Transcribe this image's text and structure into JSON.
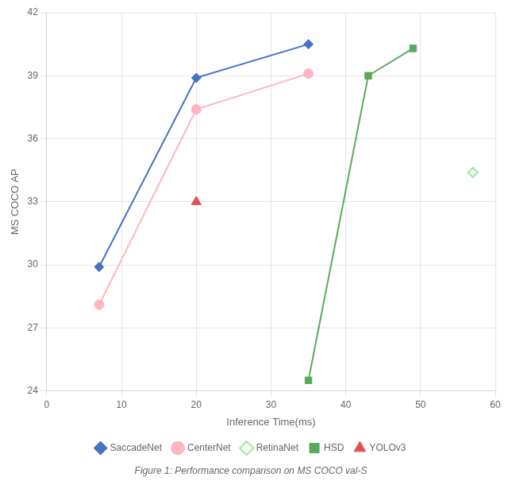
{
  "chart_data": {
    "type": "line",
    "xlabel": "Inference Time(ms)",
    "ylabel": "MS COCO AP",
    "caption": "Figure 1: Performance comparison on MS COCO val-S",
    "series": [
      {
        "name": "SaccadeNet",
        "color": "#4472C4",
        "marker": "diamond",
        "line_style": "solid",
        "x": [
          7,
          20,
          35
        ],
        "values": [
          29.9,
          38.9,
          40.5
        ]
      },
      {
        "name": "CenterNet",
        "color": "#FFB6C1",
        "marker": "circle",
        "line_style": "solid",
        "x": [
          7,
          20,
          35
        ],
        "values": [
          28.1,
          37.4,
          39.1
        ]
      },
      {
        "name": "RetinaNet",
        "color": "#90EE90",
        "marker": "diamond-open",
        "line_style": "none",
        "x": [
          57
        ],
        "values": [
          34.4
        ]
      },
      {
        "name": "HSD",
        "color": "#5BA85B",
        "marker": "square",
        "line_style": "solid",
        "x": [
          35,
          43,
          49
        ],
        "values": [
          24.5,
          39.0,
          40.3
        ]
      },
      {
        "name": "YOLOv3",
        "color": "#E05050",
        "marker": "triangle",
        "line_style": "none",
        "x": [
          20
        ],
        "values": [
          33.0
        ]
      }
    ],
    "xlim": [
      0,
      60
    ],
    "ylim": [
      24,
      42
    ],
    "xticks": [
      0,
      10,
      20,
      30,
      40,
      50,
      60
    ],
    "yticks": [
      24,
      27,
      30,
      33,
      36,
      39,
      42
    ],
    "grid": true,
    "legend": "bottom"
  }
}
